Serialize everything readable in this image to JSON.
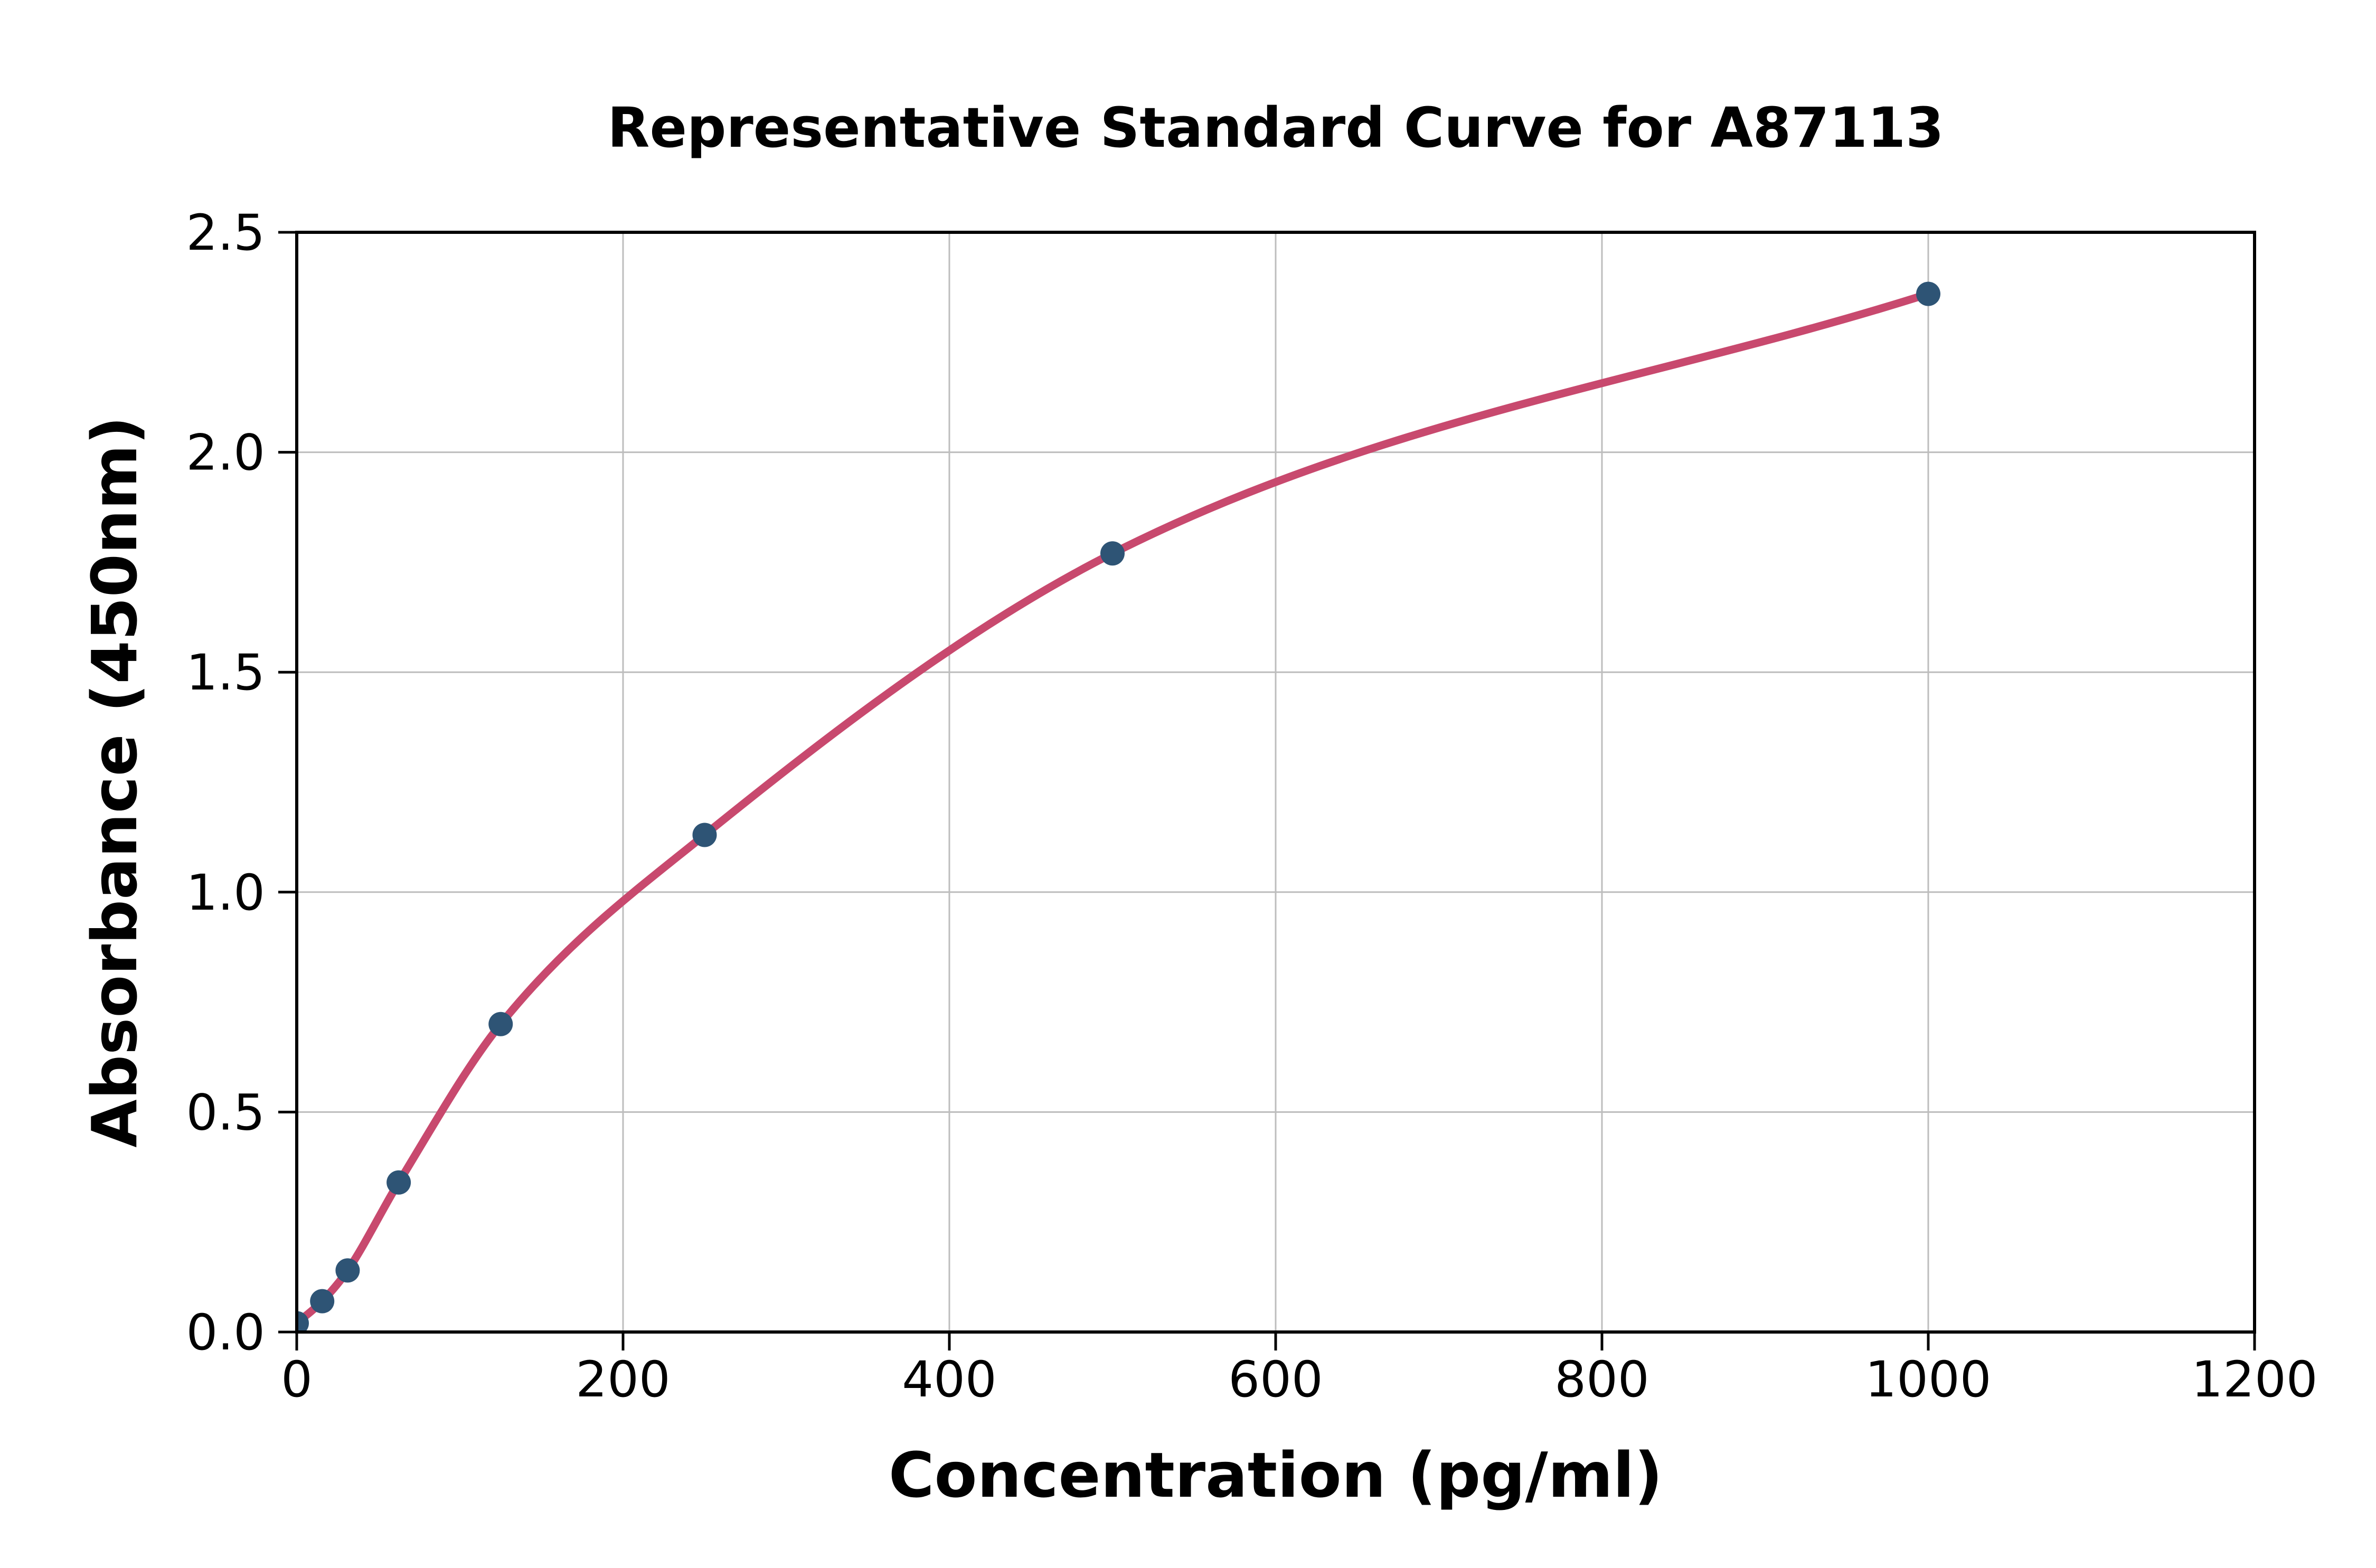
{
  "chart_data": {
    "type": "scatter",
    "title": "Representative Standard Curve for A87113",
    "xlabel": "Concentration (pg/ml)",
    "ylabel": "Absorbance (450nm)",
    "xlim": [
      0,
      1200
    ],
    "ylim": [
      0,
      2.5
    ],
    "x_ticks": {
      "values": [
        0,
        200,
        400,
        600,
        800,
        1000,
        1200
      ],
      "labels": [
        "0",
        "200",
        "400",
        "600",
        "800",
        "1000",
        "1200"
      ]
    },
    "y_ticks": {
      "values": [
        0,
        0.5,
        1.0,
        1.5,
        2.0,
        2.5
      ],
      "labels": [
        "0.0",
        "0.5",
        "1.0",
        "1.5",
        "2.0",
        "2.5"
      ]
    },
    "grid": true,
    "legend": "none",
    "series": [
      {
        "name": "standard-points",
        "type": "scatter",
        "color": "#2E5475",
        "x": [
          0,
          15.6,
          31.2,
          62.5,
          125,
          250,
          500,
          1000
        ],
        "y": [
          0.02,
          0.07,
          0.14,
          0.34,
          0.7,
          1.13,
          1.77,
          2.36
        ]
      },
      {
        "name": "fitted-curve",
        "type": "line",
        "color": "#C8496E",
        "x": [
          0,
          15.6,
          31.2,
          62.5,
          125,
          250,
          500,
          1000
        ],
        "y": [
          0.02,
          0.07,
          0.14,
          0.34,
          0.7,
          1.13,
          1.77,
          2.36
        ]
      }
    ],
    "colors": {
      "marker": "#2E5475",
      "line": "#C8496E",
      "grid": "#BDBDBD",
      "spine": "#000000",
      "background": "#FFFFFF"
    }
  }
}
